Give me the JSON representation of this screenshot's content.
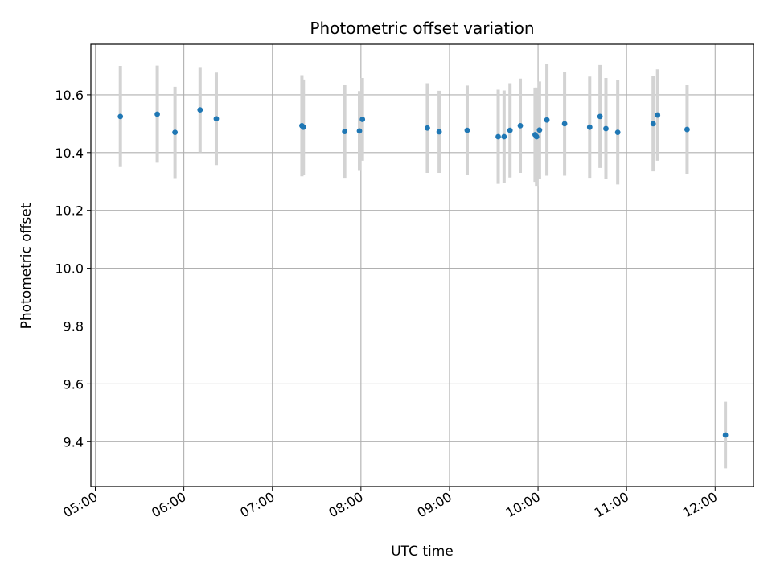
{
  "chart_data": {
    "type": "scatter",
    "title": "Photometric offset variation",
    "xlabel": "UTC time",
    "ylabel": "Photometric offset",
    "xlim": [
      "04:57",
      "12:26"
    ],
    "ylim": [
      9.245,
      10.775
    ],
    "x_ticks": [
      "05:00",
      "06:00",
      "07:00",
      "08:00",
      "09:00",
      "10:00",
      "11:00",
      "12:00"
    ],
    "y_ticks": [
      9.4,
      9.6,
      9.8,
      10.0,
      10.2,
      10.4,
      10.6
    ],
    "y_tick_labels": [
      "9.4",
      "9.6",
      "9.8",
      "10.0",
      "10.2",
      "10.4",
      "10.6"
    ],
    "grid": true,
    "colors": {
      "point": "#1f77b4",
      "errorbar": "#d3d3d3",
      "grid": "#b0b0b0"
    },
    "series": [
      {
        "points": [
          {
            "t": "05:17",
            "y": 10.525,
            "err": 0.175
          },
          {
            "t": "05:42",
            "y": 10.533,
            "err": 0.168
          },
          {
            "t": "05:54",
            "y": 10.47,
            "err": 0.158
          },
          {
            "t": "06:11",
            "y": 10.548,
            "err": 0.148
          },
          {
            "t": "06:22",
            "y": 10.517,
            "err": 0.16
          },
          {
            "t": "07:20",
            "y": 10.493,
            "err": 0.175
          },
          {
            "t": "07:21",
            "y": 10.488,
            "err": 0.165
          },
          {
            "t": "07:49",
            "y": 10.473,
            "err": 0.16
          },
          {
            "t": "07:59",
            "y": 10.475,
            "err": 0.138
          },
          {
            "t": "08:01",
            "y": 10.515,
            "err": 0.143
          },
          {
            "t": "08:45",
            "y": 10.485,
            "err": 0.155
          },
          {
            "t": "08:53",
            "y": 10.472,
            "err": 0.142
          },
          {
            "t": "09:12",
            "y": 10.477,
            "err": 0.155
          },
          {
            "t": "09:33",
            "y": 10.455,
            "err": 0.163
          },
          {
            "t": "09:37",
            "y": 10.455,
            "err": 0.16
          },
          {
            "t": "09:41",
            "y": 10.477,
            "err": 0.163
          },
          {
            "t": "09:48",
            "y": 10.493,
            "err": 0.163
          },
          {
            "t": "09:58",
            "y": 10.462,
            "err": 0.163
          },
          {
            "t": "09:59",
            "y": 10.455,
            "err": 0.17
          },
          {
            "t": "10:01",
            "y": 10.478,
            "err": 0.168
          },
          {
            "t": "10:06",
            "y": 10.513,
            "err": 0.193
          },
          {
            "t": "10:18",
            "y": 10.5,
            "err": 0.18
          },
          {
            "t": "10:35",
            "y": 10.488,
            "err": 0.175
          },
          {
            "t": "10:42",
            "y": 10.525,
            "err": 0.178
          },
          {
            "t": "10:46",
            "y": 10.483,
            "err": 0.175
          },
          {
            "t": "10:54",
            "y": 10.47,
            "err": 0.18
          },
          {
            "t": "11:18",
            "y": 10.5,
            "err": 0.165
          },
          {
            "t": "11:21",
            "y": 10.53,
            "err": 0.158
          },
          {
            "t": "11:41",
            "y": 10.48,
            "err": 0.153
          },
          {
            "t": "12:07",
            "y": 9.423,
            "err": 0.115
          }
        ]
      }
    ]
  }
}
